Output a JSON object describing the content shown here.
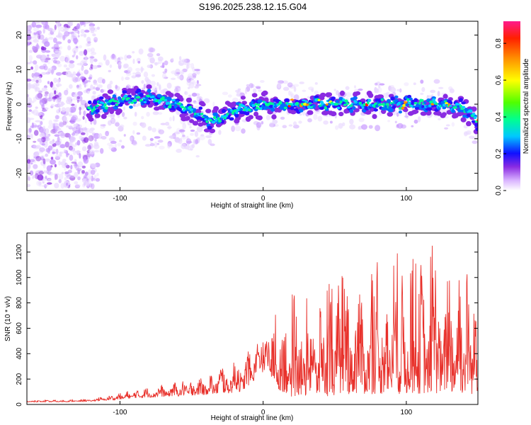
{
  "title": "S196.2025.238.12.15.G04",
  "chart_data": [
    {
      "type": "heatmap",
      "xlabel": "Height of straight line (km)",
      "ylabel": "Frequency (Hz)",
      "xlim": [
        -165,
        150
      ],
      "ylim": [
        -25,
        24
      ],
      "xticks": [
        -100,
        0,
        100
      ],
      "yticks": [
        -20,
        -10,
        0,
        10,
        20
      ],
      "colorbar": {
        "label": "Normalized spectral amplitude",
        "range": [
          0,
          0.92
        ],
        "ticks": [
          0.0,
          0.2,
          0.4,
          0.6,
          0.8
        ]
      },
      "ridge": {
        "x": [
          -120,
          -100,
          -80,
          -60,
          -45,
          -35,
          -20,
          0,
          20,
          40,
          60,
          80,
          100,
          120,
          140,
          150
        ],
        "freq": [
          -1,
          1,
          2,
          0,
          -3,
          -5,
          -2,
          0,
          0,
          0,
          0,
          0,
          0,
          0,
          -1,
          -5
        ]
      }
    },
    {
      "type": "line",
      "xlabel": "Height of straight line (km)",
      "ylabel": "SNR (10 * v/v)",
      "xlim": [
        -165,
        150
      ],
      "ylim": [
        0,
        1350
      ],
      "xticks": [
        -100,
        0,
        100
      ],
      "yticks": [
        0,
        200,
        400,
        600,
        800,
        1000,
        1200
      ],
      "color": "#e8302a",
      "envelope": {
        "x": [
          -165,
          -140,
          -120,
          -105,
          -90,
          -70,
          -50,
          -30,
          -15,
          0,
          10,
          20,
          40,
          60,
          80,
          100,
          120,
          140,
          150
        ],
        "baseline": [
          20,
          20,
          25,
          35,
          50,
          60,
          70,
          80,
          100,
          250,
          120,
          60,
          60,
          80,
          80,
          80,
          80,
          80,
          80
        ],
        "peak": [
          35,
          35,
          45,
          80,
          120,
          160,
          220,
          320,
          420,
          520,
          700,
          800,
          900,
          1000,
          1050,
          1100,
          1200,
          1200,
          1000
        ]
      }
    }
  ]
}
